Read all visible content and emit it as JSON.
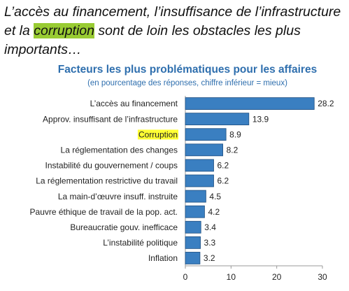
{
  "heading": [
    "L’accès au financement, l’insuffisance de l’infrastructure et la ",
    "corruption",
    " sont de loin les obstacles les plus importants…"
  ],
  "heading_highlight": {
    "part": 1,
    "color": "#99cc33"
  },
  "chart_data": {
    "type": "hbar",
    "title": "Facteurs les plus problématiques pour les affaires",
    "subtitle": "(en pourcentage des réponses, chiffre inférieur = mieux)",
    "categories": [
      "L’accès au financement",
      "Approv. insuffisant de l’infrastructure",
      "Corruption",
      "La réglementation des changes",
      "Instabilité du gouvernement / coups",
      "La réglementation restrictive du travail",
      "La main-d’œuvre insuff. instruite",
      "Pauvre éthique de travail de la pop. act.",
      "Bureaucratie gouv. inefficace",
      "L’instabilité politique",
      "Inflation"
    ],
    "values": [
      28.2,
      13.9,
      8.9,
      8.2,
      6.2,
      6.2,
      4.5,
      4.2,
      3.4,
      3.3,
      3.2
    ],
    "color": "#3a7fc1",
    "highlight": {
      "category": 2,
      "color": "#ffff33"
    },
    "xlim": [
      0,
      30
    ],
    "xticks": [
      0,
      10,
      20,
      30
    ]
  }
}
